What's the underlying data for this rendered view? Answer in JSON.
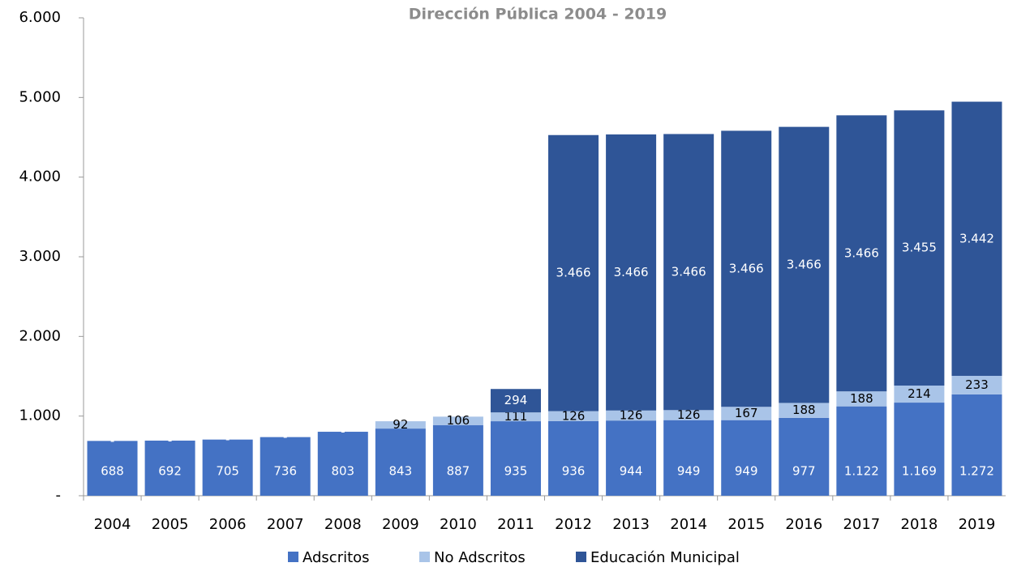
{
  "chart_data": {
    "type": "stacked_bar",
    "title": "Dirección Pública 2004 - 2019",
    "categories": [
      "2004",
      "2005",
      "2006",
      "2007",
      "2008",
      "2009",
      "2010",
      "2011",
      "2012",
      "2013",
      "2014",
      "2015",
      "2016",
      "2017",
      "2018",
      "2019"
    ],
    "series": [
      {
        "name": "Adscritos",
        "color": "#4472c4",
        "values": [
          688,
          692,
          705,
          736,
          803,
          843,
          887,
          935,
          936,
          944,
          949,
          949,
          977,
          1122,
          1169,
          1272
        ],
        "value_labels": [
          "688",
          "692",
          "705",
          "736",
          "803",
          "843",
          "887",
          "935",
          "936",
          "944",
          "949",
          "949",
          "977",
          "1.122",
          "1.169",
          "1.272"
        ]
      },
      {
        "name": "No Adscritos",
        "color": "#a9c4e8",
        "values": [
          0,
          0,
          0,
          0,
          0,
          92,
          106,
          111,
          126,
          126,
          126,
          167,
          188,
          188,
          214,
          233
        ],
        "value_labels": [
          "-",
          "-",
          "-",
          "-",
          "-",
          "92",
          "106",
          "111",
          "126",
          "126",
          "126",
          "167",
          "188",
          "188",
          "214",
          "233"
        ]
      },
      {
        "name": "Educación Municipal",
        "color": "#2f5597",
        "values": [
          null,
          null,
          null,
          null,
          null,
          null,
          null,
          294,
          3466,
          3466,
          3466,
          3466,
          3466,
          3466,
          3455,
          3442
        ],
        "value_labels": [
          null,
          null,
          null,
          null,
          null,
          null,
          null,
          "294",
          "3.466",
          "3.466",
          "3.466",
          "3.466",
          "3.466",
          "3.466",
          "3.455",
          "3.442"
        ]
      }
    ],
    "ylim": [
      0,
      6000
    ],
    "yticks": [
      {
        "value": 0,
        "label": "-"
      },
      {
        "value": 1000,
        "label": "1.000"
      },
      {
        "value": 2000,
        "label": "2.000"
      },
      {
        "value": 3000,
        "label": "3.000"
      },
      {
        "value": 4000,
        "label": "4.000"
      },
      {
        "value": 5000,
        "label": "5.000"
      },
      {
        "value": 6000,
        "label": "6.000"
      }
    ],
    "legend": "bottom"
  }
}
